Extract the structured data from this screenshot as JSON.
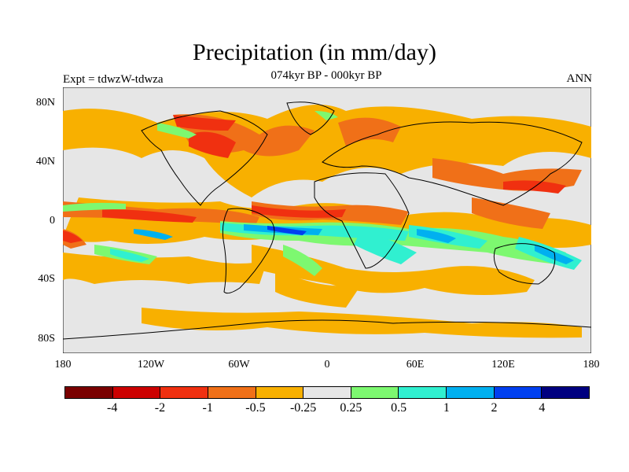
{
  "title": "Precipitation (in mm/day)",
  "subtitle_left": "Expt = tdwzW-tdwza",
  "subtitle_center": "074kyr BP - 000kyr BP",
  "subtitle_right": "ANN",
  "lat_ticks": [
    "80N",
    "40N",
    "0",
    "40S",
    "80S"
  ],
  "lon_ticks": [
    "180",
    "120W",
    "60W",
    "0",
    "60E",
    "120E",
    "180"
  ],
  "colorbar": {
    "colors": [
      "#7a0000",
      "#cc0000",
      "#f03010",
      "#f07018",
      "#f8b000",
      "#e6e6e6",
      "#7df870",
      "#30f0d0",
      "#00b0f0",
      "#0040f0",
      "#000080"
    ],
    "labels": [
      "-4",
      "-2",
      "-1",
      "-0.5",
      "-0.25",
      "0.25",
      "0.5",
      "1",
      "2",
      "4"
    ]
  },
  "map_colors": {
    "background": "#e6e6e6",
    "coast": "#000000"
  }
}
